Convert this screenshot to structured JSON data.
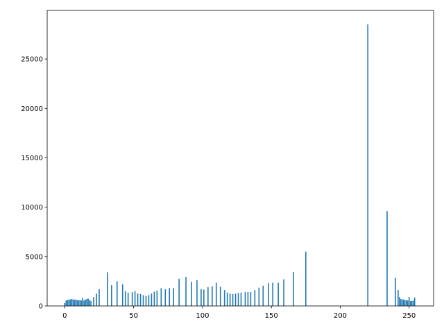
{
  "chart_data": {
    "type": "bar",
    "color": "#1f77b4",
    "x": [
      0,
      1,
      2,
      3,
      4,
      5,
      6,
      7,
      8,
      9,
      10,
      11,
      12,
      13,
      14,
      15,
      16,
      17,
      18,
      19,
      21,
      23,
      25,
      31,
      34,
      38,
      42,
      44,
      46,
      49,
      51,
      53,
      55,
      57,
      59,
      61,
      63,
      65,
      67,
      70,
      73,
      76,
      79,
      83,
      88,
      92,
      96,
      99,
      101,
      104,
      107,
      110,
      113,
      116,
      118,
      120,
      122,
      124,
      126,
      128,
      131,
      133,
      135,
      138,
      141,
      144,
      148,
      151,
      155,
      159,
      166,
      175,
      220,
      234,
      240,
      242,
      243,
      244,
      245,
      246,
      247,
      248,
      249,
      250,
      251,
      252,
      253,
      254
    ],
    "values": [
      300,
      550,
      600,
      650,
      650,
      700,
      680,
      620,
      650,
      600,
      580,
      600,
      550,
      800,
      550,
      650,
      700,
      750,
      600,
      500,
      900,
      1250,
      1700,
      3400,
      2100,
      2500,
      2200,
      1500,
      1350,
      1400,
      1500,
      1250,
      1200,
      1100,
      1000,
      1100,
      1250,
      1450,
      1550,
      1800,
      1700,
      1800,
      1800,
      2750,
      2950,
      2450,
      2600,
      1700,
      1650,
      1900,
      2000,
      2350,
      1950,
      1600,
      1350,
      1250,
      1200,
      1250,
      1300,
      1350,
      1400,
      1400,
      1400,
      1600,
      1850,
      2050,
      2300,
      2350,
      2350,
      2700,
      3450,
      5500,
      28500,
      9600,
      2850,
      1600,
      900,
      700,
      650,
      650,
      600,
      600,
      550,
      900,
      500,
      500,
      550,
      850
    ],
    "xlim": [
      -12.75,
      267.75
    ],
    "xticks": [
      0,
      50,
      100,
      150,
      200,
      250
    ],
    "ylim": [
      0,
      29925
    ],
    "yticks": [
      0,
      5000,
      10000,
      15000,
      20000,
      25000
    ]
  }
}
